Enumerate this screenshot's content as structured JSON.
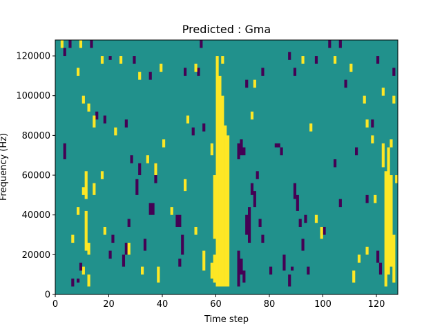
{
  "chart_data": {
    "type": "heatmap",
    "title": "Predicted : Gma",
    "xlabel": "Time step",
    "ylabel": "Frequency (Hz)",
    "xlim": [
      0,
      128
    ],
    "ylim": [
      0,
      128000
    ],
    "x_ticks": [
      0,
      20,
      40,
      60,
      80,
      100,
      120
    ],
    "y_ticks": [
      0,
      20000,
      40000,
      60000,
      80000,
      100000,
      120000
    ],
    "x_tick_labels": [
      "0",
      "20",
      "40",
      "60",
      "80",
      "100",
      "120"
    ],
    "y_tick_labels": [
      "0",
      "20000",
      "40000",
      "60000",
      "80000",
      "100000",
      "120000"
    ],
    "grid": false,
    "legend": "none",
    "n_time_steps": 128,
    "n_freq_bins": 128,
    "freq_bin_hz": 1000,
    "colormap": "viridis",
    "value_levels": {
      "low": -1,
      "mid": 0,
      "high": 1
    },
    "colors": {
      "low": "#440154",
      "mid": "#21918c",
      "high": "#fde725"
    },
    "background_value": 0,
    "cells": [
      {
        "t": 60,
        "f0": 4,
        "f1": 120,
        "v": 1
      },
      {
        "t": 61,
        "f0": 4,
        "f1": 110,
        "v": 1
      },
      {
        "t": 62,
        "f0": 4,
        "f1": 100,
        "v": 1
      },
      {
        "t": 63,
        "f0": 4,
        "f1": 85,
        "v": 1
      },
      {
        "t": 64,
        "f0": 4,
        "f1": 80,
        "v": 1
      },
      {
        "t": 59,
        "f0": 6,
        "f1": 20,
        "v": 1
      },
      {
        "t": 59,
        "f0": 28,
        "f1": 60,
        "v": 1
      },
      {
        "t": 58,
        "f0": 8,
        "f1": 16,
        "v": 1
      },
      {
        "t": 58,
        "f0": 70,
        "f1": 76,
        "v": 1
      },
      {
        "t": 123,
        "f0": 4,
        "f1": 62,
        "v": 1
      },
      {
        "t": 124,
        "f0": 10,
        "f1": 74,
        "v": 1
      },
      {
        "t": 125,
        "f0": 14,
        "f1": 60,
        "v": 1
      },
      {
        "t": 126,
        "f0": 6,
        "f1": 30,
        "v": 1
      },
      {
        "t": 127,
        "f0": 56,
        "f1": 60,
        "v": 1
      },
      {
        "t": 122,
        "f0": 64,
        "f1": 76,
        "v": 1
      },
      {
        "t": 11,
        "f0": 22,
        "f1": 42,
        "v": 1
      },
      {
        "t": 12,
        "f0": 20,
        "f1": 26,
        "v": 1
      },
      {
        "t": 11,
        "f0": 48,
        "f1": 62,
        "v": 1
      },
      {
        "t": 10,
        "f0": 10,
        "f1": 14,
        "v": 1
      },
      {
        "t": 12,
        "f0": 4,
        "f1": 10,
        "v": 1
      },
      {
        "t": 10,
        "f0": 50,
        "f1": 54,
        "v": 1
      },
      {
        "t": 6,
        "f0": 4,
        "f1": 8,
        "v": -1
      },
      {
        "t": 8,
        "f0": 6,
        "f1": 8,
        "v": -1
      },
      {
        "t": 9,
        "f0": 12,
        "f1": 16,
        "v": -1
      },
      {
        "t": 68,
        "f0": 4,
        "f1": 22,
        "v": -1
      },
      {
        "t": 69,
        "f0": 10,
        "f1": 18,
        "v": -1
      },
      {
        "t": 70,
        "f0": 6,
        "f1": 12,
        "v": -1
      },
      {
        "t": 71,
        "f0": 30,
        "f1": 40,
        "v": -1
      },
      {
        "t": 72,
        "f0": 26,
        "f1": 44,
        "v": -1
      },
      {
        "t": 68,
        "f0": 68,
        "f1": 76,
        "v": -1
      },
      {
        "t": 69,
        "f0": 70,
        "f1": 78,
        "v": -1
      },
      {
        "t": 70,
        "f0": 70,
        "f1": 74,
        "v": -1
      },
      {
        "t": 73,
        "f0": 50,
        "f1": 56,
        "v": -1
      },
      {
        "t": 74,
        "f0": 44,
        "f1": 52,
        "v": -1
      },
      {
        "t": 75,
        "f0": 58,
        "f1": 62,
        "v": -1
      },
      {
        "t": 76,
        "f0": 34,
        "f1": 38,
        "v": -1
      },
      {
        "t": 77,
        "f0": 26,
        "f1": 30,
        "v": -1
      },
      {
        "t": 80,
        "f0": 10,
        "f1": 14,
        "v": -1
      },
      {
        "t": 82,
        "f0": 74,
        "f1": 76,
        "v": -1
      },
      {
        "t": 83,
        "f0": 74,
        "f1": 76,
        "v": -1
      },
      {
        "t": 84,
        "f0": 70,
        "f1": 74,
        "v": -1
      },
      {
        "t": 85,
        "f0": 12,
        "f1": 20,
        "v": -1
      },
      {
        "t": 87,
        "f0": 4,
        "f1": 10,
        "v": -1
      },
      {
        "t": 88,
        "f0": 12,
        "f1": 14,
        "v": -1
      },
      {
        "t": 89,
        "f0": 48,
        "f1": 56,
        "v": -1
      },
      {
        "t": 90,
        "f0": 42,
        "f1": 50,
        "v": -1
      },
      {
        "t": 91,
        "f0": 34,
        "f1": 38,
        "v": -1
      },
      {
        "t": 92,
        "f0": 22,
        "f1": 28,
        "v": -1
      },
      {
        "t": 93,
        "f0": 36,
        "f1": 40,
        "v": -1
      },
      {
        "t": 94,
        "f0": 10,
        "f1": 14,
        "v": -1
      },
      {
        "t": 45,
        "f0": 34,
        "f1": 40,
        "v": -1
      },
      {
        "t": 46,
        "f0": 34,
        "f1": 40,
        "v": -1
      },
      {
        "t": 46,
        "f0": 14,
        "f1": 18,
        "v": -1
      },
      {
        "t": 47,
        "f0": 20,
        "f1": 30,
        "v": -1
      },
      {
        "t": 35,
        "f0": 40,
        "f1": 46,
        "v": -1
      },
      {
        "t": 36,
        "f0": 40,
        "f1": 46,
        "v": -1
      },
      {
        "t": 37,
        "f0": 56,
        "f1": 66,
        "v": -1
      },
      {
        "t": 30,
        "f0": 50,
        "f1": 58,
        "v": -1
      },
      {
        "t": 31,
        "f0": 60,
        "f1": 66,
        "v": -1
      },
      {
        "t": 33,
        "f0": 22,
        "f1": 28,
        "v": -1
      },
      {
        "t": 25,
        "f0": 14,
        "f1": 20,
        "v": -1
      },
      {
        "t": 26,
        "f0": 20,
        "f1": 26,
        "v": -1
      },
      {
        "t": 27,
        "f0": 34,
        "f1": 38,
        "v": -1
      },
      {
        "t": 28,
        "f0": 66,
        "f1": 70,
        "v": -1
      },
      {
        "t": 20,
        "f0": 18,
        "f1": 22,
        "v": -1
      },
      {
        "t": 21,
        "f0": 26,
        "f1": 30,
        "v": -1
      },
      {
        "t": 3,
        "f0": 120,
        "f1": 124,
        "v": -1
      },
      {
        "t": 5,
        "f0": 124,
        "f1": 128,
        "v": -1
      },
      {
        "t": 13,
        "f0": 124,
        "f1": 128,
        "v": -1
      },
      {
        "t": 20,
        "f0": 118,
        "f1": 120,
        "v": -1
      },
      {
        "t": 29,
        "f0": 116,
        "f1": 120,
        "v": -1
      },
      {
        "t": 35,
        "f0": 108,
        "f1": 112,
        "v": -1
      },
      {
        "t": 48,
        "f0": 110,
        "f1": 114,
        "v": -1
      },
      {
        "t": 53,
        "f0": 110,
        "f1": 114,
        "v": -1
      },
      {
        "t": 54,
        "f0": 124,
        "f1": 128,
        "v": -1
      },
      {
        "t": 71,
        "f0": 104,
        "f1": 108,
        "v": -1
      },
      {
        "t": 77,
        "f0": 110,
        "f1": 114,
        "v": -1
      },
      {
        "t": 87,
        "f0": 118,
        "f1": 122,
        "v": -1
      },
      {
        "t": 89,
        "f0": 110,
        "f1": 114,
        "v": -1
      },
      {
        "t": 97,
        "f0": 116,
        "f1": 120,
        "v": -1
      },
      {
        "t": 102,
        "f0": 124,
        "f1": 128,
        "v": -1
      },
      {
        "t": 106,
        "f0": 124,
        "f1": 128,
        "v": -1
      },
      {
        "t": 108,
        "f0": 104,
        "f1": 108,
        "v": -1
      },
      {
        "t": 120,
        "f0": 116,
        "f1": 120,
        "v": -1
      },
      {
        "t": 126,
        "f0": 110,
        "f1": 114,
        "v": -1
      },
      {
        "t": 118,
        "f0": 84,
        "f1": 88,
        "v": -1
      },
      {
        "t": 112,
        "f0": 70,
        "f1": 74,
        "v": -1
      },
      {
        "t": 116,
        "f0": 46,
        "f1": 50,
        "v": -1
      },
      {
        "t": 120,
        "f0": 16,
        "f1": 22,
        "v": -1
      },
      {
        "t": 121,
        "f0": 10,
        "f1": 16,
        "v": -1
      },
      {
        "t": 3,
        "f0": 68,
        "f1": 76,
        "v": -1
      },
      {
        "t": 15,
        "f0": 88,
        "f1": 92,
        "v": -1
      },
      {
        "t": 18,
        "f0": 86,
        "f1": 90,
        "v": -1
      },
      {
        "t": 26,
        "f0": 84,
        "f1": 88,
        "v": -1
      },
      {
        "t": 51,
        "f0": 80,
        "f1": 84,
        "v": -1
      },
      {
        "t": 55,
        "f0": 82,
        "f1": 86,
        "v": -1
      },
      {
        "t": 104,
        "f0": 64,
        "f1": 68,
        "v": -1
      },
      {
        "t": 100,
        "f0": 30,
        "f1": 34,
        "v": -1
      },
      {
        "t": 106,
        "f0": 44,
        "f1": 48,
        "v": -1
      },
      {
        "t": 2,
        "f0": 124,
        "f1": 128,
        "v": 1
      },
      {
        "t": 9,
        "f0": 124,
        "f1": 128,
        "v": 1
      },
      {
        "t": 8,
        "f0": 110,
        "f1": 114,
        "v": 1
      },
      {
        "t": 10,
        "f0": 96,
        "f1": 100,
        "v": 1
      },
      {
        "t": 12,
        "f0": 92,
        "f1": 96,
        "v": 1
      },
      {
        "t": 17,
        "f0": 116,
        "f1": 120,
        "v": 1
      },
      {
        "t": 24,
        "f0": 116,
        "f1": 120,
        "v": 1
      },
      {
        "t": 31,
        "f0": 108,
        "f1": 112,
        "v": 1
      },
      {
        "t": 39,
        "f0": 112,
        "f1": 116,
        "v": 1
      },
      {
        "t": 52,
        "f0": 112,
        "f1": 116,
        "v": 1
      },
      {
        "t": 62,
        "f0": 116,
        "f1": 120,
        "v": 1
      },
      {
        "t": 74,
        "f0": 104,
        "f1": 108,
        "v": 1
      },
      {
        "t": 92,
        "f0": 116,
        "f1": 120,
        "v": 1
      },
      {
        "t": 104,
        "f0": 116,
        "f1": 120,
        "v": 1
      },
      {
        "t": 110,
        "f0": 112,
        "f1": 116,
        "v": 1
      },
      {
        "t": 115,
        "f0": 96,
        "f1": 100,
        "v": 1
      },
      {
        "t": 122,
        "f0": 100,
        "f1": 104,
        "v": 1
      },
      {
        "t": 126,
        "f0": 96,
        "f1": 100,
        "v": 1
      },
      {
        "t": 14,
        "f0": 84,
        "f1": 90,
        "v": 1
      },
      {
        "t": 22,
        "f0": 80,
        "f1": 84,
        "v": 1
      },
      {
        "t": 40,
        "f0": 74,
        "f1": 78,
        "v": 1
      },
      {
        "t": 49,
        "f0": 86,
        "f1": 90,
        "v": 1
      },
      {
        "t": 73,
        "f0": 88,
        "f1": 92,
        "v": 1
      },
      {
        "t": 95,
        "f0": 82,
        "f1": 86,
        "v": 1
      },
      {
        "t": 116,
        "f0": 84,
        "f1": 88,
        "v": 1
      },
      {
        "t": 118,
        "f0": 76,
        "f1": 80,
        "v": 1
      },
      {
        "t": 125,
        "f0": 74,
        "f1": 78,
        "v": 1
      },
      {
        "t": 8,
        "f0": 40,
        "f1": 44,
        "v": 1
      },
      {
        "t": 6,
        "f0": 26,
        "f1": 30,
        "v": 1
      },
      {
        "t": 27,
        "f0": 20,
        "f1": 26,
        "v": 1
      },
      {
        "t": 32,
        "f0": 10,
        "f1": 14,
        "v": 1
      },
      {
        "t": 38,
        "f0": 6,
        "f1": 14,
        "v": 1
      },
      {
        "t": 43,
        "f0": 40,
        "f1": 44,
        "v": 1
      },
      {
        "t": 48,
        "f0": 52,
        "f1": 58,
        "v": 1
      },
      {
        "t": 55,
        "f0": 12,
        "f1": 22,
        "v": 1
      },
      {
        "t": 52,
        "f0": 30,
        "f1": 34,
        "v": 1
      },
      {
        "t": 97,
        "f0": 36,
        "f1": 40,
        "v": 1
      },
      {
        "t": 99,
        "f0": 28,
        "f1": 34,
        "v": 1
      },
      {
        "t": 111,
        "f0": 6,
        "f1": 12,
        "v": 1
      },
      {
        "t": 113,
        "f0": 16,
        "f1": 20,
        "v": 1
      },
      {
        "t": 119,
        "f0": 46,
        "f1": 50,
        "v": 1
      },
      {
        "t": 116,
        "f0": 20,
        "f1": 24,
        "v": 1
      },
      {
        "t": 34,
        "f0": 66,
        "f1": 70,
        "v": 1
      },
      {
        "t": 37,
        "f0": 60,
        "f1": 66,
        "v": 1
      },
      {
        "t": 17,
        "f0": 58,
        "f1": 62,
        "v": 1
      },
      {
        "t": 14,
        "f0": 50,
        "f1": 56,
        "v": 1
      },
      {
        "t": 18,
        "f0": 30,
        "f1": 34,
        "v": 1
      }
    ]
  }
}
